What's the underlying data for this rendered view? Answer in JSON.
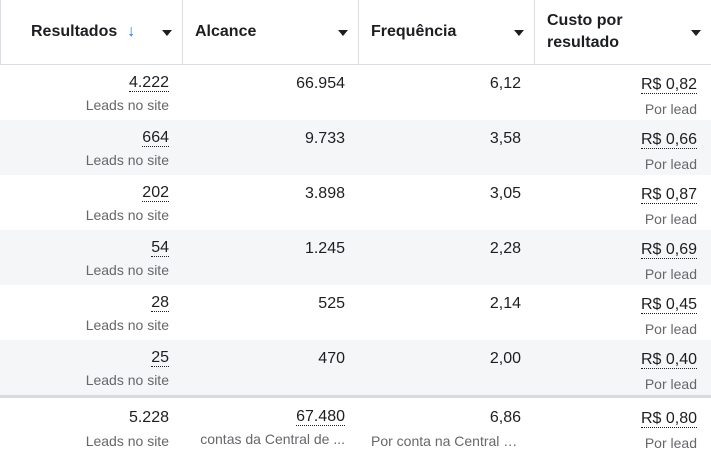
{
  "columns": [
    {
      "label": "Resultados",
      "sorted": true,
      "sort_arrow": "↓"
    },
    {
      "label": "Alcance"
    },
    {
      "label": "Frequência"
    },
    {
      "label": "Custo por resultado"
    }
  ],
  "rows": [
    {
      "resultados": "4.222",
      "resultados_sub": "Leads no site",
      "alcance": "66.954",
      "frequencia": "6,12",
      "custo": "R$ 0,82",
      "custo_sub": "Por lead"
    },
    {
      "resultados": "664",
      "resultados_sub": "Leads no site",
      "alcance": "9.733",
      "frequencia": "3,58",
      "custo": "R$ 0,66",
      "custo_sub": "Por lead"
    },
    {
      "resultados": "202",
      "resultados_sub": "Leads no site",
      "alcance": "3.898",
      "frequencia": "3,05",
      "custo": "R$ 0,87",
      "custo_sub": "Por lead"
    },
    {
      "resultados": "54",
      "resultados_sub": "Leads no site",
      "alcance": "1.245",
      "frequencia": "2,28",
      "custo": "R$ 0,69",
      "custo_sub": "Por lead"
    },
    {
      "resultados": "28",
      "resultados_sub": "Leads no site",
      "alcance": "525",
      "frequencia": "2,14",
      "custo": "R$ 0,45",
      "custo_sub": "Por lead"
    },
    {
      "resultados": "25",
      "resultados_sub": "Leads no site",
      "alcance": "470",
      "frequencia": "2,00",
      "custo": "R$ 0,40",
      "custo_sub": "Por lead"
    }
  ],
  "totals": {
    "resultados": "5.228",
    "resultados_sub": "Leads no site",
    "alcance": "67.480",
    "alcance_sub": "contas da Central de ...",
    "frequencia": "6,86",
    "frequencia_sub": "Por conta na Central d...",
    "custo": "R$ 0,80",
    "custo_sub": "Por lead"
  },
  "colors": {
    "accent": "#1877f2",
    "row_alt": "#f5f6f7",
    "border": "#dadde1",
    "muted_text": "#65676b"
  }
}
